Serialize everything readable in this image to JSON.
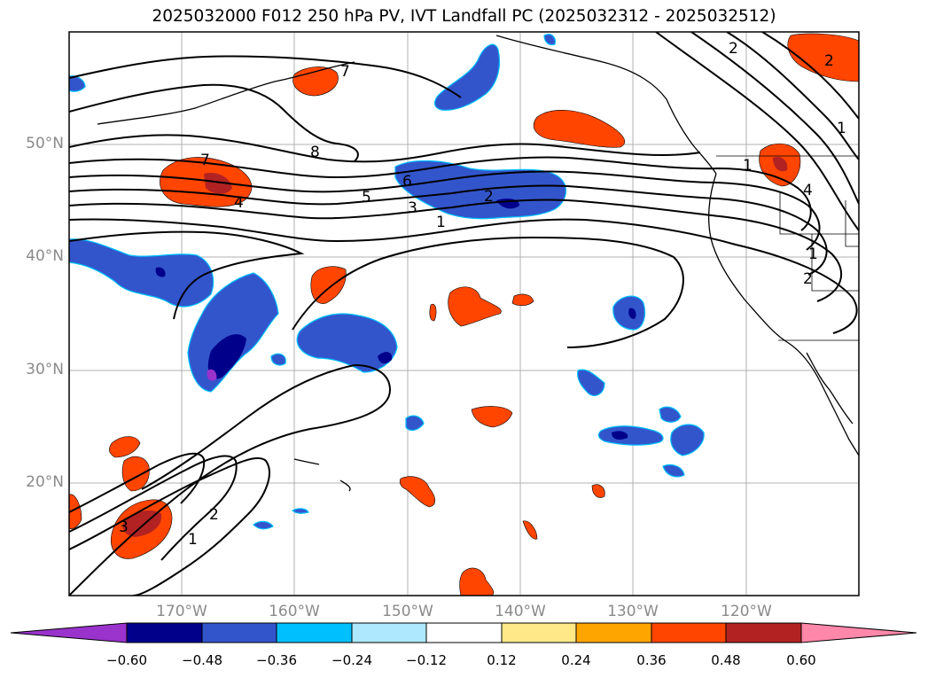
{
  "title": "2025032000 F012 250 hPa PV, IVT Landfall PC (2025032312 - 2025032512)",
  "map": {
    "lat_labels": [
      "50°N",
      "40°N",
      "30°N",
      "20°N"
    ],
    "lon_labels": [
      "170°W",
      "160°W",
      "150°W",
      "140°W",
      "130°W",
      "120°W"
    ],
    "contour_labels": [
      "8",
      "7",
      "6",
      "5",
      "4",
      "3",
      "2",
      "1",
      "7",
      "2",
      "1",
      "2",
      "1",
      "4",
      "2",
      "1",
      "3",
      "2",
      "1"
    ]
  },
  "colorbar": {
    "ticks": [
      "−0.60",
      "−0.48",
      "−0.36",
      "−0.24",
      "−0.12",
      "0.12",
      "0.24",
      "0.36",
      "0.48",
      "0.60"
    ],
    "colors": [
      "#9933cc",
      "#00008b",
      "#3355cc",
      "#00bfff",
      "#ade8ff",
      "#ffffff",
      "#ffe888",
      "#ffa500",
      "#ff4500",
      "#b22222",
      "#ff88aa"
    ]
  },
  "colors": {
    "neg_strong": "#00008b",
    "neg_mid": "#3355cc",
    "neg_weak": "#00bfff",
    "pos_weak": "#ffe888",
    "pos_mid": "#ffa500",
    "pos_strong": "#ff4500",
    "pos_max": "#b22222"
  }
}
